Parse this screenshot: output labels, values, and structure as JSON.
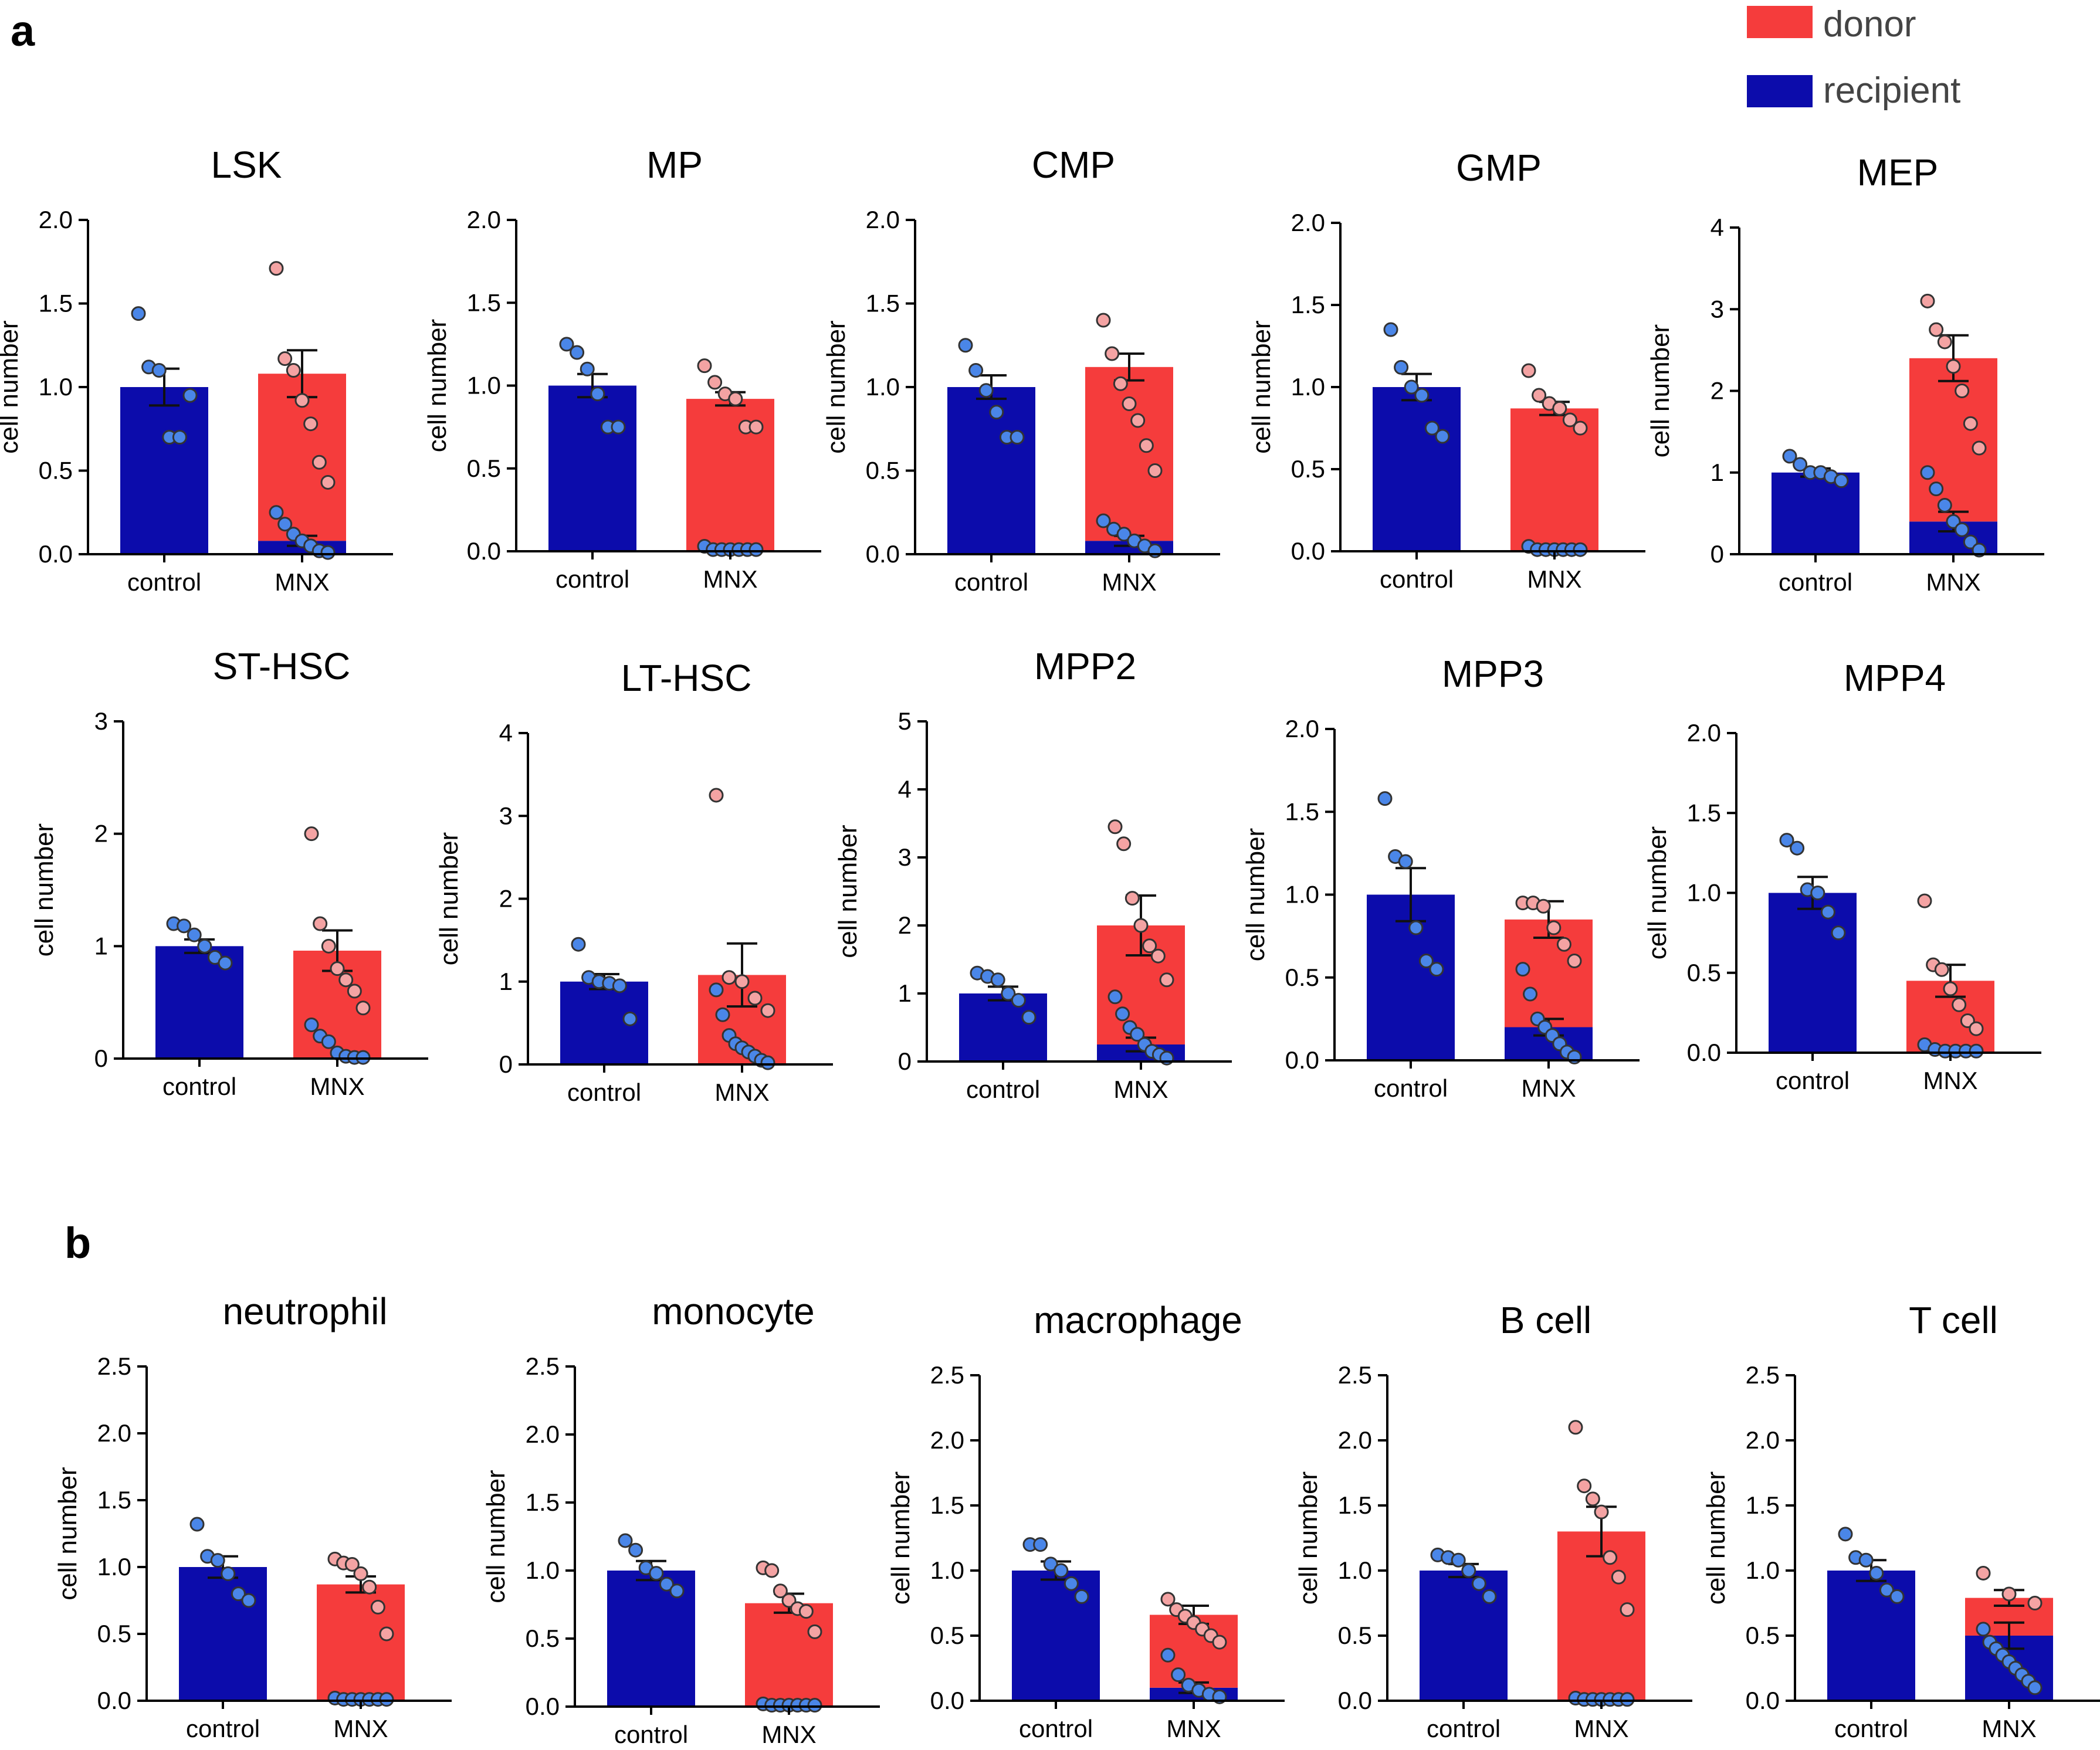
{
  "panels": {
    "a": "a",
    "b": "b"
  },
  "legend": [
    {
      "label": "donor",
      "color": "#f53c3c"
    },
    {
      "label": "recipient",
      "color": "#0c0cab"
    }
  ],
  "colors": {
    "recipient": "#0c0cab",
    "donor": "#f53c3c",
    "recipient_point": "#4a86e8",
    "donor_point": "#f4a3a3",
    "axis": "#000000"
  },
  "chart_data": [
    {
      "panel": "a",
      "type": "bar",
      "title": "LSK",
      "ylabel": "cell number",
      "categories": [
        "control",
        "MNX"
      ],
      "ylim": [
        0,
        2.0
      ],
      "yticks": [
        "0.0",
        "0.5",
        "1.0",
        "1.5",
        "2.0"
      ],
      "series": [
        {
          "name": "recipient",
          "values": [
            1.0,
            0.08
          ]
        },
        {
          "name": "donor",
          "values": [
            0,
            1.0
          ]
        }
      ],
      "totals": [
        1.0,
        1.08
      ],
      "sem": [
        0.11,
        0.14
      ],
      "sem_recipient": [
        null,
        0.03
      ],
      "points": {
        "control": [
          1.44,
          1.12,
          1.1,
          0.7,
          0.7,
          0.95
        ],
        "MNX_donor": [
          1.71,
          1.17,
          1.1,
          0.92,
          0.78,
          0.55,
          0.43
        ],
        "MNX_recipient": [
          0.25,
          0.18,
          0.12,
          0.08,
          0.05,
          0.02,
          0.01
        ]
      }
    },
    {
      "panel": "a",
      "type": "bar",
      "title": "MP",
      "ylabel": "cell number",
      "categories": [
        "control",
        "MNX"
      ],
      "ylim": [
        0,
        2.0
      ],
      "yticks": [
        "0.0",
        "0.5",
        "1.0",
        "1.5",
        "2.0"
      ],
      "series": [
        {
          "name": "recipient",
          "values": [
            1.0,
            0.0
          ]
        },
        {
          "name": "donor",
          "values": [
            0,
            0.92
          ]
        }
      ],
      "totals": [
        1.0,
        0.92
      ],
      "sem": [
        0.07,
        0.04
      ],
      "sem_recipient": [
        null,
        null
      ],
      "points": {
        "control": [
          1.25,
          1.2,
          1.1,
          0.95,
          0.75,
          0.75
        ],
        "MNX_donor": [
          1.12,
          1.02,
          0.95,
          0.92,
          0.75,
          0.75
        ],
        "MNX_recipient": [
          0.03,
          0.01,
          0.01,
          0.01,
          0.01,
          0.01,
          0.01
        ]
      }
    },
    {
      "panel": "a",
      "type": "bar",
      "title": "CMP",
      "ylabel": "cell number",
      "categories": [
        "control",
        "MNX"
      ],
      "ylim": [
        0,
        2.0
      ],
      "yticks": [
        "0.0",
        "0.5",
        "1.0",
        "1.5",
        "2.0"
      ],
      "series": [
        {
          "name": "recipient",
          "values": [
            1.0,
            0.08
          ]
        },
        {
          "name": "donor",
          "values": [
            0,
            1.04
          ]
        }
      ],
      "totals": [
        1.0,
        1.12
      ],
      "sem": [
        0.07,
        0.08
      ],
      "sem_recipient": [
        null,
        0.03
      ],
      "points": {
        "control": [
          1.25,
          1.1,
          0.98,
          0.85,
          0.7,
          0.7
        ],
        "MNX_donor": [
          1.4,
          1.2,
          1.02,
          0.9,
          0.8,
          0.65,
          0.5
        ],
        "MNX_recipient": [
          0.2,
          0.15,
          0.12,
          0.08,
          0.05,
          0.02
        ]
      }
    },
    {
      "panel": "a",
      "type": "bar",
      "title": "GMP",
      "ylabel": "cell number",
      "categories": [
        "control",
        "MNX"
      ],
      "ylim": [
        0,
        2.0
      ],
      "yticks": [
        "0.0",
        "0.5",
        "1.0",
        "1.5",
        "2.0"
      ],
      "series": [
        {
          "name": "recipient",
          "values": [
            1.0,
            0.0
          ]
        },
        {
          "name": "donor",
          "values": [
            0,
            0.87
          ]
        }
      ],
      "totals": [
        1.0,
        0.87
      ],
      "sem": [
        0.08,
        0.04
      ],
      "sem_recipient": [
        null,
        null
      ],
      "points": {
        "control": [
          1.35,
          1.12,
          1.0,
          0.95,
          0.75,
          0.7
        ],
        "MNX_donor": [
          1.1,
          0.95,
          0.9,
          0.87,
          0.8,
          0.75
        ],
        "MNX_recipient": [
          0.03,
          0.01,
          0.01,
          0.01,
          0.01,
          0.01,
          0.01
        ]
      }
    },
    {
      "panel": "a",
      "type": "bar",
      "title": "MEP",
      "ylabel": "cell number",
      "categories": [
        "control",
        "MNX"
      ],
      "ylim": [
        0,
        4
      ],
      "yticks": [
        "0",
        "1",
        "2",
        "3",
        "4"
      ],
      "series": [
        {
          "name": "recipient",
          "values": [
            1.0,
            0.4
          ]
        },
        {
          "name": "donor",
          "values": [
            0,
            2.0
          ]
        }
      ],
      "totals": [
        1.0,
        2.4
      ],
      "sem": [
        0.05,
        0.28
      ],
      "sem_recipient": [
        null,
        0.12
      ],
      "points": {
        "control": [
          1.2,
          1.1,
          1.0,
          1.0,
          0.95,
          0.9
        ],
        "MNX_donor": [
          3.1,
          2.75,
          2.6,
          2.3,
          2.0,
          1.6,
          1.3
        ],
        "MNX_recipient": [
          1.0,
          0.8,
          0.6,
          0.4,
          0.3,
          0.15,
          0.05
        ]
      }
    },
    {
      "panel": "a",
      "type": "bar",
      "title": "ST-HSC",
      "ylabel": "cell number",
      "categories": [
        "control",
        "MNX"
      ],
      "ylim": [
        0,
        3
      ],
      "yticks": [
        "0",
        "1",
        "2",
        "3"
      ],
      "series": [
        {
          "name": "recipient",
          "values": [
            1.0,
            0.0
          ]
        },
        {
          "name": "donor",
          "values": [
            0,
            0.96
          ]
        }
      ],
      "totals": [
        1.0,
        0.96
      ],
      "sem": [
        0.06,
        0.18
      ],
      "sem_recipient": [
        null,
        null
      ],
      "points": {
        "control": [
          1.2,
          1.18,
          1.1,
          1.0,
          0.9,
          0.85
        ],
        "MNX_donor": [
          2.0,
          1.2,
          1.0,
          0.8,
          0.7,
          0.6,
          0.45
        ],
        "MNX_recipient": [
          0.3,
          0.2,
          0.15,
          0.05,
          0.02,
          0.01,
          0.01
        ]
      }
    },
    {
      "panel": "a",
      "type": "bar",
      "title": "LT-HSC",
      "ylabel": "cell number",
      "categories": [
        "control",
        "MNX"
      ],
      "ylim": [
        0,
        4
      ],
      "yticks": [
        "0",
        "1",
        "2",
        "3",
        "4"
      ],
      "series": [
        {
          "name": "recipient",
          "values": [
            1.0,
            0.0
          ]
        },
        {
          "name": "donor",
          "values": [
            0,
            1.08
          ]
        }
      ],
      "totals": [
        1.0,
        1.08
      ],
      "sem": [
        0.09,
        0.38
      ],
      "sem_recipient": [
        null,
        null
      ],
      "points": {
        "control": [
          1.45,
          1.05,
          1.0,
          0.98,
          0.95,
          0.55
        ],
        "MNX_donor": [
          3.25,
          1.05,
          1.0,
          0.8,
          0.65
        ],
        "MNX_recipient": [
          0.9,
          0.6,
          0.35,
          0.25,
          0.2,
          0.15,
          0.1,
          0.05,
          0.02
        ]
      }
    },
    {
      "panel": "a",
      "type": "bar",
      "title": "MPP2",
      "ylabel": "cell number",
      "categories": [
        "control",
        "MNX"
      ],
      "ylim": [
        0,
        5
      ],
      "yticks": [
        "0",
        "1",
        "2",
        "3",
        "4",
        "5"
      ],
      "series": [
        {
          "name": "recipient",
          "values": [
            1.0,
            0.25
          ]
        },
        {
          "name": "donor",
          "values": [
            0,
            1.75
          ]
        }
      ],
      "totals": [
        1.0,
        2.0
      ],
      "sem": [
        0.1,
        0.44
      ],
      "sem_recipient": [
        null,
        0.1
      ],
      "points": {
        "control": [
          1.3,
          1.25,
          1.2,
          1.0,
          0.9,
          0.65
        ],
        "MNX_donor": [
          3.45,
          3.2,
          2.4,
          2.0,
          1.7,
          1.55,
          1.2
        ],
        "MNX_recipient": [
          0.95,
          0.7,
          0.5,
          0.4,
          0.25,
          0.15,
          0.1,
          0.05
        ]
      }
    },
    {
      "panel": "a",
      "type": "bar",
      "title": "MPP3",
      "ylabel": "cell number",
      "categories": [
        "control",
        "MNX"
      ],
      "ylim": [
        0,
        2.0
      ],
      "yticks": [
        "0.0",
        "0.5",
        "1.0",
        "1.5",
        "2.0"
      ],
      "series": [
        {
          "name": "recipient",
          "values": [
            1.0,
            0.2
          ]
        },
        {
          "name": "donor",
          "values": [
            0,
            0.65
          ]
        }
      ],
      "totals": [
        1.0,
        0.85
      ],
      "sem": [
        0.16,
        0.11
      ],
      "sem_recipient": [
        null,
        0.05
      ],
      "points": {
        "control": [
          1.58,
          1.23,
          1.2,
          0.8,
          0.6,
          0.55
        ],
        "MNX_donor": [
          0.95,
          0.95,
          0.93,
          0.8,
          0.7,
          0.6
        ],
        "MNX_recipient": [
          0.55,
          0.4,
          0.25,
          0.2,
          0.15,
          0.1,
          0.05,
          0.02
        ]
      }
    },
    {
      "panel": "a",
      "type": "bar",
      "title": "MPP4",
      "ylabel": "cell number",
      "categories": [
        "control",
        "MNX"
      ],
      "ylim": [
        0,
        2.0
      ],
      "yticks": [
        "0.0",
        "0.5",
        "1.0",
        "1.5",
        "2.0"
      ],
      "series": [
        {
          "name": "recipient",
          "values": [
            1.0,
            0.0
          ]
        },
        {
          "name": "donor",
          "values": [
            0,
            0.45
          ]
        }
      ],
      "totals": [
        1.0,
        0.45
      ],
      "sem": [
        0.1,
        0.1
      ],
      "sem_recipient": [
        null,
        null
      ],
      "points": {
        "control": [
          1.33,
          1.28,
          1.02,
          1.0,
          0.88,
          0.75
        ],
        "MNX_donor": [
          0.95,
          0.55,
          0.52,
          0.4,
          0.3,
          0.2,
          0.15
        ],
        "MNX_recipient": [
          0.05,
          0.02,
          0.01,
          0.01,
          0.01,
          0.01
        ]
      }
    },
    {
      "panel": "b",
      "type": "bar",
      "title": "neutrophil",
      "ylabel": "cell number",
      "categories": [
        "control",
        "MNX"
      ],
      "ylim": [
        0,
        2.5
      ],
      "yticks": [
        "0.0",
        "0.5",
        "1.0",
        "1.5",
        "2.0",
        "2.5"
      ],
      "series": [
        {
          "name": "recipient",
          "values": [
            1.0,
            0.0
          ]
        },
        {
          "name": "donor",
          "values": [
            0,
            0.87
          ]
        }
      ],
      "totals": [
        1.0,
        0.87
      ],
      "sem": [
        0.08,
        0.06
      ],
      "sem_recipient": [
        null,
        null
      ],
      "points": {
        "control": [
          1.32,
          1.08,
          1.05,
          0.95,
          0.8,
          0.75
        ],
        "MNX_donor": [
          1.06,
          1.03,
          1.02,
          0.95,
          0.85,
          0.7,
          0.5
        ],
        "MNX_recipient": [
          0.02,
          0.01,
          0.01,
          0.01,
          0.01,
          0.01,
          0.01
        ]
      }
    },
    {
      "panel": "b",
      "type": "bar",
      "title": "monocyte",
      "ylabel": "cell number",
      "categories": [
        "control",
        "MNX"
      ],
      "ylim": [
        0,
        2.5
      ],
      "yticks": [
        "0.0",
        "0.5",
        "1.0",
        "1.5",
        "2.0",
        "2.5"
      ],
      "series": [
        {
          "name": "recipient",
          "values": [
            1.0,
            0.0
          ]
        },
        {
          "name": "donor",
          "values": [
            0,
            0.76
          ]
        }
      ],
      "totals": [
        1.0,
        0.76
      ],
      "sem": [
        0.07,
        0.07
      ],
      "sem_recipient": [
        null,
        null
      ],
      "points": {
        "control": [
          1.22,
          1.15,
          1.02,
          0.98,
          0.9,
          0.85
        ],
        "MNX_donor": [
          1.02,
          1.0,
          0.85,
          0.78,
          0.72,
          0.7,
          0.55
        ],
        "MNX_recipient": [
          0.02,
          0.01,
          0.01,
          0.01,
          0.01,
          0.01,
          0.01
        ]
      }
    },
    {
      "panel": "b",
      "type": "bar",
      "title": "macrophage",
      "ylabel": "cell number",
      "categories": [
        "control",
        "MNX"
      ],
      "ylim": [
        0,
        2.5
      ],
      "yticks": [
        "0.0",
        "0.5",
        "1.0",
        "1.5",
        "2.0",
        "2.5"
      ],
      "series": [
        {
          "name": "recipient",
          "values": [
            1.0,
            0.1
          ]
        },
        {
          "name": "donor",
          "values": [
            0,
            0.56
          ]
        }
      ],
      "totals": [
        1.0,
        0.66
      ],
      "sem": [
        0.07,
        0.07
      ],
      "sem_recipient": [
        null,
        0.04
      ],
      "points": {
        "control": [
          1.2,
          1.2,
          1.05,
          1.0,
          0.9,
          0.8
        ],
        "MNX_donor": [
          0.78,
          0.7,
          0.65,
          0.6,
          0.55,
          0.5,
          0.45
        ],
        "MNX_recipient": [
          0.35,
          0.2,
          0.12,
          0.08,
          0.05,
          0.03
        ]
      }
    },
    {
      "panel": "b",
      "type": "bar",
      "title": "B cell",
      "ylabel": "cell number",
      "categories": [
        "control",
        "MNX"
      ],
      "ylim": [
        0,
        2.5
      ],
      "yticks": [
        "0.0",
        "0.5",
        "1.0",
        "1.5",
        "2.0",
        "2.5"
      ],
      "series": [
        {
          "name": "recipient",
          "values": [
            1.0,
            0.0
          ]
        },
        {
          "name": "donor",
          "values": [
            0,
            1.3
          ]
        }
      ],
      "totals": [
        1.0,
        1.3
      ],
      "sem": [
        0.05,
        0.19
      ],
      "sem_recipient": [
        null,
        null
      ],
      "points": {
        "control": [
          1.12,
          1.1,
          1.08,
          1.0,
          0.9,
          0.8
        ],
        "MNX_donor": [
          2.1,
          1.65,
          1.55,
          1.45,
          1.1,
          0.95,
          0.7
        ],
        "MNX_recipient": [
          0.02,
          0.01,
          0.01,
          0.01,
          0.01,
          0.01,
          0.01
        ]
      }
    },
    {
      "panel": "b",
      "type": "bar",
      "title": "T cell",
      "ylabel": "cell number",
      "categories": [
        "control",
        "MNX"
      ],
      "ylim": [
        0,
        2.5
      ],
      "yticks": [
        "0.0",
        "0.5",
        "1.0",
        "1.5",
        "2.0",
        "2.5"
      ],
      "series": [
        {
          "name": "recipient",
          "values": [
            1.0,
            0.5
          ]
        },
        {
          "name": "donor",
          "values": [
            0,
            0.29
          ]
        }
      ],
      "totals": [
        1.0,
        0.79
      ],
      "sem": [
        0.08,
        0.06
      ],
      "sem_recipient": [
        null,
        0.1
      ],
      "points": {
        "control": [
          1.28,
          1.1,
          1.08,
          0.98,
          0.85,
          0.8
        ],
        "MNX_donor": [
          0.98,
          0.82,
          0.75
        ],
        "MNX_recipient": [
          0.55,
          0.45,
          0.4,
          0.35,
          0.3,
          0.25,
          0.2,
          0.15,
          0.1
        ]
      }
    }
  ]
}
